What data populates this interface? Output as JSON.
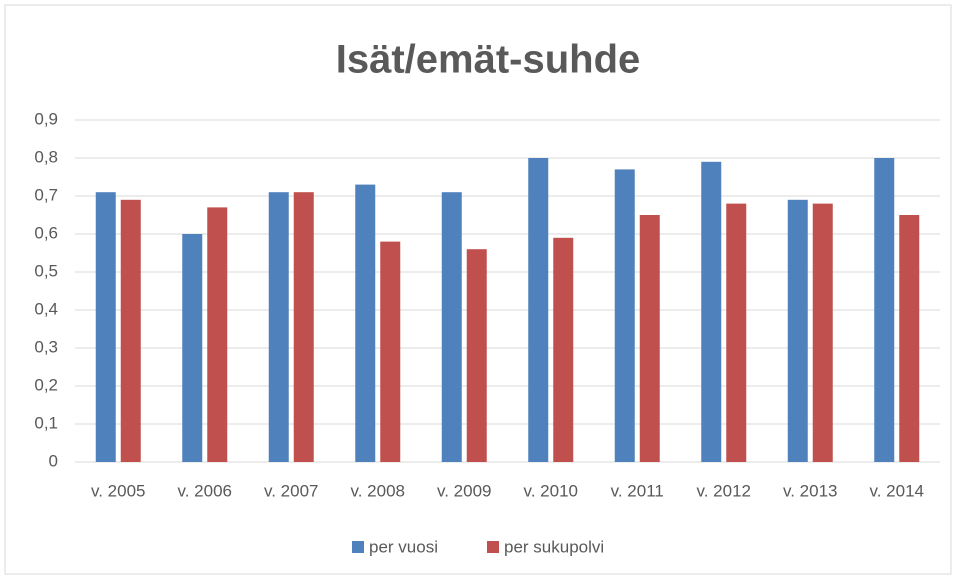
{
  "chart_data": {
    "type": "bar",
    "title": "Isät/emät-suhde",
    "categories": [
      "v. 2005",
      "v. 2006",
      "v. 2007",
      "v. 2008",
      "v. 2009",
      "v. 2010",
      "v. 2011",
      "v. 2012",
      "v. 2013",
      "v. 2014"
    ],
    "series": [
      {
        "name": "per vuosi",
        "color": "#4f81bd",
        "values": [
          0.71,
          0.6,
          0.71,
          0.73,
          0.71,
          0.8,
          0.77,
          0.79,
          0.69,
          0.8
        ]
      },
      {
        "name": "per sukupolvi",
        "color": "#c0504d",
        "values": [
          0.69,
          0.67,
          0.71,
          0.58,
          0.56,
          0.59,
          0.65,
          0.68,
          0.68,
          0.65
        ]
      }
    ],
    "ylim": [
      0,
      0.9
    ],
    "yticks": [
      0,
      {
        "value": 0.1,
        "label": "0,1"
      },
      {
        "value": 0.2,
        "label": "0,2"
      },
      {
        "value": 0.3,
        "label": "0,3"
      },
      {
        "value": 0.4,
        "label": "0,4"
      },
      {
        "value": 0.5,
        "label": "0,5"
      },
      {
        "value": 0.6,
        "label": "0,6"
      },
      {
        "value": 0.7,
        "label": "0,7"
      },
      {
        "value": 0.8,
        "label": "0,8"
      },
      {
        "value": 0.9,
        "label": "0,9"
      }
    ],
    "grid": true,
    "legend": "bottom"
  }
}
